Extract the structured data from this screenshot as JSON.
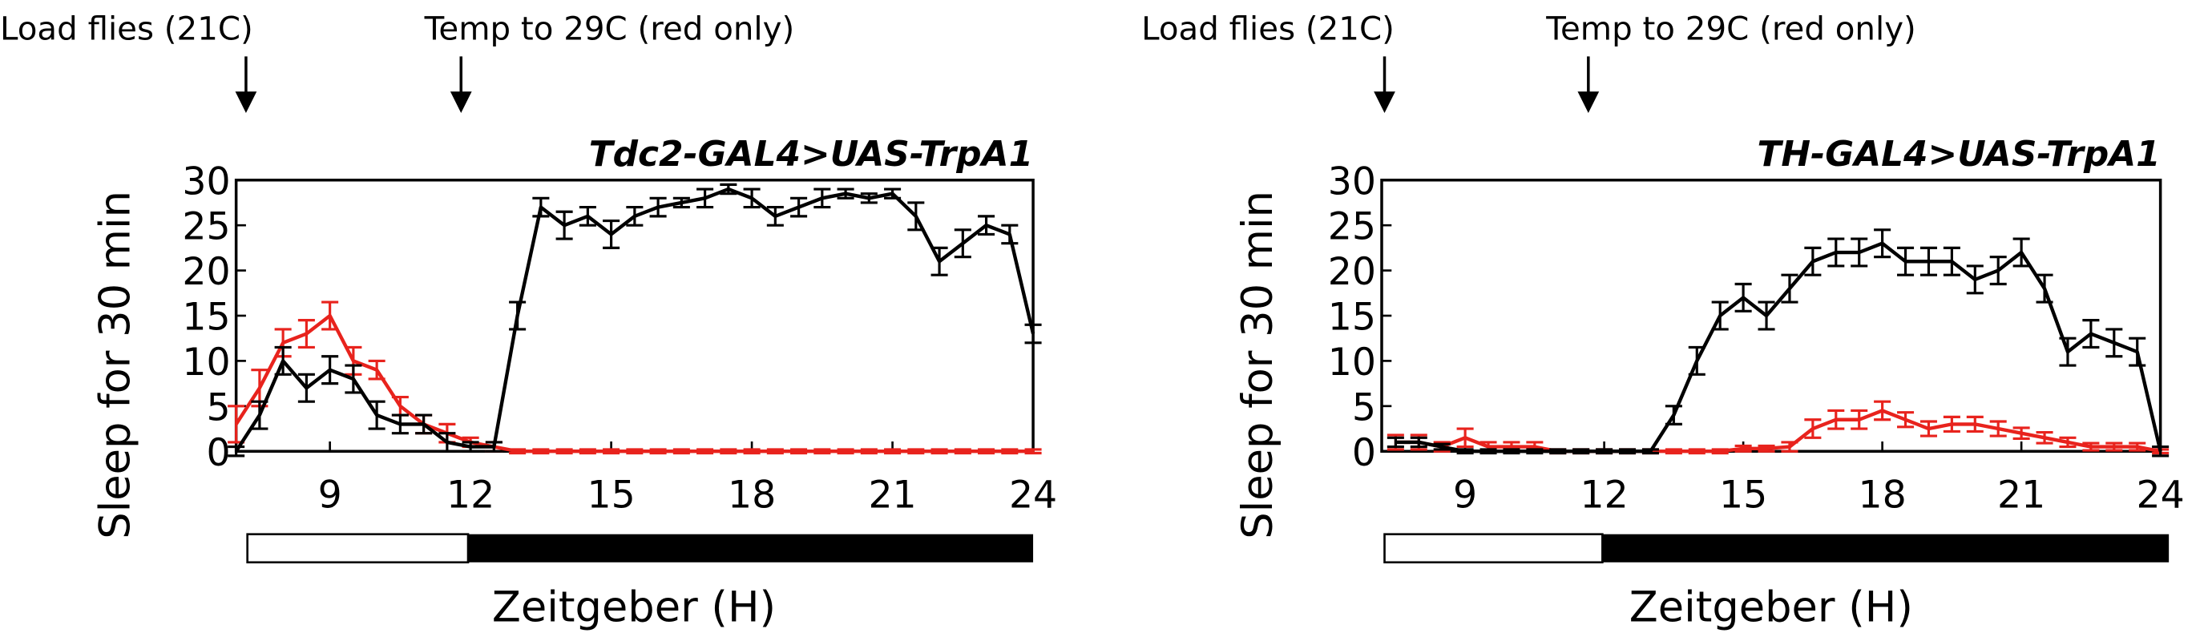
{
  "chart_data": [
    {
      "type": "line",
      "title": "Tdc2-GAL4>UAS-TrpA1",
      "ylabel": "Sleep for 30 min",
      "xlabel": "Zeitgeber (H)",
      "annotations": [
        "Load flies (21C)",
        "Temp to 29C (red only)"
      ],
      "xlim": [
        7,
        24
      ],
      "xticks": [
        9,
        12,
        15,
        18,
        21,
        24
      ],
      "ylim": [
        0,
        30
      ],
      "yticks": [
        0,
        5,
        10,
        15,
        20,
        25,
        30
      ],
      "x": [
        7,
        7.5,
        8,
        8.5,
        9,
        9.5,
        10,
        10.5,
        11,
        11.5,
        12,
        12.5,
        13,
        13.5,
        14,
        14.5,
        15,
        15.5,
        16,
        16.5,
        17,
        17.5,
        18,
        18.5,
        19,
        19.5,
        20,
        20.5,
        21,
        21.5,
        22,
        22.5,
        23,
        23.5,
        24
      ],
      "series": [
        {
          "color": "#e8231d",
          "values": [
            3,
            7,
            12,
            13,
            15,
            10,
            9,
            5,
            3,
            2,
            1,
            0.5,
            0,
            0,
            0,
            0,
            0,
            0,
            0,
            0,
            0,
            0,
            0,
            0,
            0,
            0,
            0,
            0,
            0,
            0,
            0,
            0,
            0,
            0,
            0
          ],
          "errors": [
            2,
            2,
            1.5,
            1.5,
            1.5,
            1.5,
            1,
            1,
            1,
            1,
            0.5,
            0.5,
            0.2,
            0.2,
            0.2,
            0.2,
            0.2,
            0.2,
            0.2,
            0.2,
            0.2,
            0.2,
            0.2,
            0.2,
            0.2,
            0.2,
            0.2,
            0.2,
            0.2,
            0.2,
            0.2,
            0.2,
            0.2,
            0.2,
            0.2
          ]
        },
        {
          "color": "#000000",
          "values": [
            0,
            4,
            10,
            7,
            9,
            8,
            4,
            3,
            3,
            1,
            0.5,
            0.5,
            15,
            27,
            25,
            26,
            24,
            26,
            27,
            27.5,
            28,
            29,
            28,
            26,
            27,
            28,
            28.5,
            28,
            28.5,
            26,
            21,
            23,
            25,
            24,
            13
          ],
          "errors": [
            0.5,
            1.5,
            1.5,
            1.5,
            1.5,
            1.5,
            1.5,
            1,
            1,
            1,
            0.5,
            0.5,
            1.5,
            1,
            1.5,
            1,
            1.5,
            1,
            1,
            0.5,
            1,
            0.5,
            1,
            1,
            1,
            1,
            0.5,
            0.5,
            0.5,
            1.5,
            1.5,
            1.5,
            1,
            1,
            1
          ]
        }
      ]
    },
    {
      "type": "line",
      "title": "TH-GAL4>UAS-TrpA1",
      "ylabel": "Sleep for 30 min",
      "xlabel": "Zeitgeber (H)",
      "annotations": [
        "Load flies (21C)",
        "Temp to 29C (red only)"
      ],
      "xlim": [
        7.2,
        24
      ],
      "xticks": [
        9,
        12,
        15,
        18,
        21,
        24
      ],
      "ylim": [
        0,
        30
      ],
      "yticks": [
        0,
        5,
        10,
        15,
        20,
        25,
        30
      ],
      "x": [
        7.5,
        8,
        8.5,
        9,
        9.5,
        10,
        10.5,
        11,
        11.5,
        12,
        12.5,
        13,
        13.5,
        14,
        14.5,
        15,
        15.5,
        16,
        16.5,
        17,
        17.5,
        18,
        18.5,
        19,
        19.5,
        20,
        20.5,
        21,
        21.5,
        22,
        22.5,
        23,
        23.5,
        24
      ],
      "series": [
        {
          "color": "#e8231d",
          "values": [
            1,
            1,
            0.5,
            1.5,
            0.5,
            0.5,
            0.5,
            0,
            0,
            0,
            0,
            0,
            0,
            0,
            0,
            0.3,
            0.3,
            0.5,
            2.5,
            3.5,
            3.5,
            4.5,
            3.5,
            2.5,
            3,
            3,
            2.5,
            2,
            1.5,
            1,
            0.5,
            0.5,
            0.5,
            0
          ],
          "errors": [
            0.8,
            0.8,
            0.5,
            1,
            0.5,
            0.5,
            0.5,
            0.2,
            0.2,
            0.2,
            0.2,
            0.2,
            0.2,
            0.2,
            0.2,
            0.3,
            0.3,
            0.5,
            1,
            1,
            1,
            1,
            0.8,
            0.8,
            0.8,
            0.8,
            0.8,
            0.6,
            0.6,
            0.5,
            0.4,
            0.4,
            0.4,
            0.2
          ]
        },
        {
          "color": "#000000",
          "values": [
            1,
            1,
            0.5,
            0,
            0,
            0,
            0,
            0,
            0,
            0,
            0,
            0,
            4,
            10,
            15,
            17,
            15,
            18,
            21,
            22,
            22,
            23,
            21,
            21,
            21,
            19,
            20,
            22,
            18,
            11,
            13,
            12,
            11,
            0
          ],
          "errors": [
            0.5,
            0.5,
            0.3,
            0.2,
            0.2,
            0.2,
            0.2,
            0.2,
            0.2,
            0.2,
            0.2,
            0.2,
            1,
            1.5,
            1.5,
            1.5,
            1.5,
            1.5,
            1.5,
            1.5,
            1.5,
            1.5,
            1.5,
            1.5,
            1.5,
            1.5,
            1.5,
            1.5,
            1.5,
            1.5,
            1.5,
            1.5,
            1.5,
            0.5
          ]
        }
      ]
    }
  ]
}
